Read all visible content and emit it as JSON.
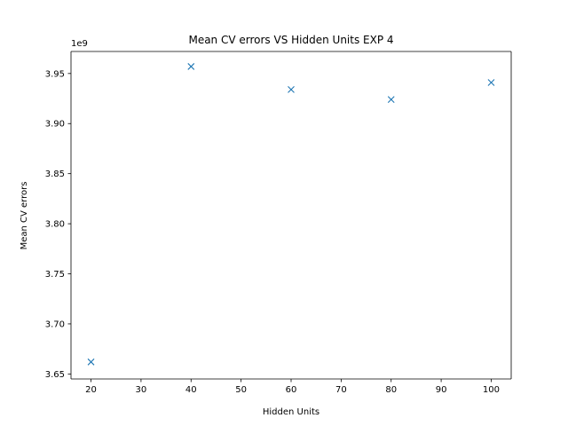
{
  "chart_data": {
    "type": "scatter",
    "title": "Mean CV errors VS Hidden Units EXP 4",
    "xlabel": "Hidden Units",
    "ylabel": "Mean CV errors",
    "y_offset_label": "1e9",
    "y_scale": 1000000000,
    "xlim": [
      16,
      104
    ],
    "ylim": [
      3.645,
      3.972
    ],
    "x_ticks": [
      20,
      30,
      40,
      50,
      60,
      70,
      80,
      90,
      100
    ],
    "y_ticks": [
      3.65,
      3.7,
      3.75,
      3.8,
      3.85,
      3.9,
      3.95
    ],
    "y_tick_labels": [
      "3.65",
      "3.70",
      "3.75",
      "3.80",
      "3.85",
      "3.90",
      "3.95"
    ],
    "grid": false,
    "marker": "x",
    "series": [
      {
        "color": "#1f77b4",
        "x": [
          20,
          40,
          60,
          80,
          100
        ],
        "y": [
          3.662,
          3.957,
          3.934,
          3.924,
          3.941
        ]
      }
    ]
  }
}
